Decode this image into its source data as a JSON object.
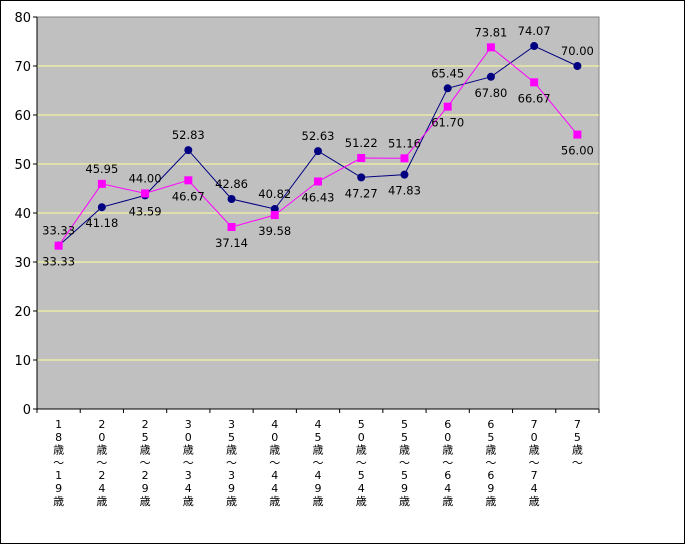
{
  "chart_data": {
    "type": "line",
    "title": "",
    "xlabel": "",
    "ylabel": "",
    "ylim": [
      0,
      80
    ],
    "yticks": [
      0,
      10,
      20,
      30,
      40,
      50,
      60,
      70,
      80
    ],
    "grid": "horizontal",
    "legend": "none",
    "categories": [
      "18歳～19歳",
      "20歳～24歳",
      "25歳～29歳",
      "30歳～34歳",
      "35歳～39歳",
      "40歳～44歳",
      "45歳～49歳",
      "50歳～54歳",
      "55歳～59歳",
      "60歳～64歳",
      "65歳～69歳",
      "70歳～74歳",
      "75歳～"
    ],
    "series": [
      {
        "values": [
          33.33,
          41.18,
          43.59,
          52.83,
          42.86,
          40.82,
          52.63,
          47.27,
          47.83,
          65.45,
          67.8,
          74.07,
          70.0
        ],
        "labels": [
          "33.33",
          "41.18",
          "43.59",
          "52.83",
          "42.86",
          "40.82",
          "52.63",
          "47.27",
          "47.83",
          "65.45",
          "67.80",
          "74.07",
          "70.00"
        ],
        "marker": "circle",
        "color": "#000080"
      },
      {
        "values": [
          33.33,
          45.95,
          44.0,
          46.67,
          37.14,
          39.58,
          46.43,
          51.22,
          51.16,
          61.7,
          73.81,
          66.67,
          56.0
        ],
        "labels": [
          "33.33",
          "45.95",
          "44.00",
          "46.67",
          "37.14",
          "39.58",
          "46.43",
          "51.22",
          "51.16",
          "61.70",
          "73.81",
          "66.67",
          "56.00"
        ],
        "marker": "square",
        "color": "#ff00ff"
      }
    ],
    "colors": {
      "plot_background": "#c0c0c0",
      "gridline": "#ffff99"
    }
  }
}
